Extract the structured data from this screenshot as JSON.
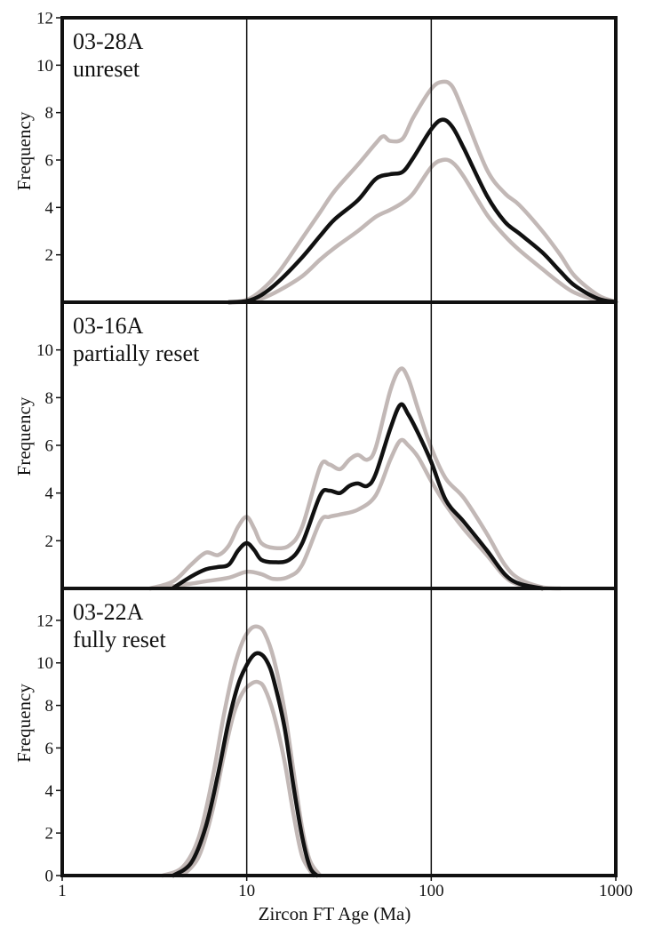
{
  "colors": {
    "best_fit": "#111111",
    "envelope": "#c2b8b6",
    "frame": "#111111",
    "refline": "#111111"
  },
  "chart_data": [
    {
      "type": "line",
      "panel_label": [
        "03-28A",
        "unreset"
      ],
      "xlabel": "",
      "ylabel": "Frequency",
      "xscale": "log",
      "xlim": [
        1,
        1000
      ],
      "ylim": [
        0,
        12
      ],
      "yticks": [
        2,
        4,
        6,
        8,
        10,
        12
      ],
      "reference_lines_x": [
        10,
        100
      ],
      "series": [
        {
          "role": "upper",
          "x": [
            8,
            10,
            12,
            15,
            20,
            25,
            30,
            40,
            50,
            55,
            60,
            70,
            80,
            100,
            115,
            130,
            150,
            200,
            250,
            300,
            400,
            500,
            600,
            800,
            1000
          ],
          "y": [
            0,
            0.1,
            0.5,
            1.3,
            2.7,
            3.8,
            4.7,
            5.8,
            6.7,
            7.0,
            6.8,
            6.9,
            7.8,
            9.0,
            9.3,
            9.1,
            8.0,
            5.6,
            4.6,
            4.1,
            3.0,
            2.0,
            1.1,
            0.3,
            0.02
          ]
        },
        {
          "role": "best",
          "x": [
            8,
            10,
            12,
            15,
            20,
            25,
            30,
            40,
            50,
            60,
            70,
            80,
            100,
            115,
            130,
            150,
            200,
            250,
            300,
            400,
            500,
            600,
            800,
            1000
          ],
          "y": [
            0,
            0.05,
            0.3,
            0.9,
            1.9,
            2.8,
            3.5,
            4.3,
            5.2,
            5.4,
            5.5,
            6.1,
            7.3,
            7.7,
            7.4,
            6.5,
            4.5,
            3.4,
            2.9,
            2.1,
            1.3,
            0.7,
            0.15,
            0.01
          ]
        },
        {
          "role": "lower",
          "x": [
            8,
            10,
            12,
            15,
            20,
            25,
            30,
            40,
            50,
            60,
            70,
            80,
            100,
            115,
            130,
            150,
            200,
            250,
            300,
            400,
            500,
            600,
            800,
            1000
          ],
          "y": [
            0,
            0.02,
            0.15,
            0.5,
            1.1,
            1.8,
            2.3,
            3.0,
            3.6,
            3.9,
            4.2,
            4.6,
            5.7,
            6.0,
            5.9,
            5.3,
            3.7,
            2.8,
            2.2,
            1.4,
            0.8,
            0.4,
            0.08,
            0.0
          ]
        }
      ]
    },
    {
      "type": "line",
      "panel_label": [
        "03-16A",
        "partially reset"
      ],
      "xlabel": "",
      "ylabel": "Frequency",
      "xscale": "log",
      "xlim": [
        1,
        1000
      ],
      "ylim": [
        0,
        12
      ],
      "yticks": [
        2,
        4,
        6,
        8,
        10
      ],
      "reference_lines_x": [
        10,
        100
      ],
      "series": [
        {
          "role": "upper",
          "x": [
            3,
            4,
            5,
            6,
            7,
            8,
            9,
            10,
            11,
            12,
            14,
            17,
            20,
            25,
            28,
            32,
            36,
            40,
            45,
            50,
            60,
            68,
            75,
            85,
            100,
            120,
            150,
            200,
            250,
            300,
            400,
            500
          ],
          "y": [
            0,
            0.3,
            1.0,
            1.5,
            1.4,
            1.8,
            2.6,
            3.0,
            2.5,
            1.9,
            1.7,
            1.8,
            2.6,
            5.1,
            5.2,
            5.0,
            5.4,
            5.6,
            5.4,
            5.9,
            8.3,
            9.2,
            8.8,
            7.5,
            5.9,
            4.6,
            3.8,
            2.3,
            1.0,
            0.4,
            0.05,
            0
          ]
        },
        {
          "role": "best",
          "x": [
            4,
            5,
            6,
            7,
            8,
            9,
            10,
            11,
            12,
            14,
            17,
            20,
            25,
            28,
            32,
            36,
            40,
            45,
            50,
            60,
            68,
            75,
            85,
            100,
            120,
            150,
            200,
            250,
            300,
            400
          ],
          "y": [
            0.02,
            0.5,
            0.8,
            0.9,
            1.0,
            1.6,
            1.9,
            1.6,
            1.2,
            1.1,
            1.2,
            1.9,
            3.9,
            4.1,
            4.0,
            4.3,
            4.4,
            4.3,
            4.8,
            6.7,
            7.7,
            7.3,
            6.5,
            5.3,
            3.7,
            2.8,
            1.6,
            0.6,
            0.2,
            0
          ]
        },
        {
          "role": "lower",
          "x": [
            3,
            4,
            5,
            6,
            8,
            10,
            12,
            14,
            17,
            20,
            25,
            28,
            32,
            40,
            50,
            60,
            68,
            75,
            85,
            100,
            120,
            150,
            200,
            250,
            300,
            400
          ],
          "y": [
            0,
            0.1,
            0.2,
            0.3,
            0.45,
            0.7,
            0.6,
            0.4,
            0.5,
            1.0,
            2.8,
            3.0,
            3.1,
            3.3,
            3.9,
            5.4,
            6.2,
            6.0,
            5.5,
            4.5,
            3.5,
            2.5,
            1.4,
            0.5,
            0.15,
            0
          ]
        }
      ]
    },
    {
      "type": "line",
      "panel_label": [
        "03-22A",
        "fully reset"
      ],
      "xlabel": "Zircon FT Age (Ma)",
      "ylabel": "Frequency",
      "xscale": "log",
      "xlim": [
        1,
        1000
      ],
      "ylim": [
        0,
        13.5
      ],
      "yticks": [
        0,
        2,
        4,
        6,
        8,
        10,
        12
      ],
      "xtick_labels": [
        "1",
        "10",
        "100",
        "1000"
      ],
      "reference_lines_x": [
        10,
        100
      ],
      "series": [
        {
          "role": "upper",
          "x": [
            3.5,
            4.5,
            5.5,
            6.5,
            7.5,
            8.5,
            9.5,
            10.5,
            11.5,
            12.5,
            14,
            16,
            18,
            20,
            22,
            25
          ],
          "y": [
            0,
            0.4,
            1.8,
            4.5,
            7.5,
            9.7,
            11.0,
            11.6,
            11.7,
            11.4,
            10.2,
            7.8,
            4.8,
            2.2,
            0.7,
            0
          ]
        },
        {
          "role": "best",
          "x": [
            4,
            5,
            6,
            7,
            8,
            9,
            10,
            11,
            12,
            13,
            14,
            16,
            18,
            20,
            22,
            24
          ],
          "y": [
            0,
            0.6,
            2.3,
            4.8,
            7.3,
            9.0,
            9.9,
            10.4,
            10.4,
            10.0,
            9.2,
            7.0,
            4.1,
            1.8,
            0.4,
            0
          ]
        },
        {
          "role": "lower",
          "x": [
            4.5,
            5.5,
            6.5,
            7.5,
            8.5,
            9.5,
            10.5,
            11.5,
            12.5,
            14,
            16,
            18,
            20,
            23
          ],
          "y": [
            0,
            0.9,
            3.0,
            5.6,
            7.6,
            8.6,
            9.0,
            9.1,
            8.8,
            7.6,
            5.4,
            2.8,
            0.9,
            0
          ]
        }
      ]
    }
  ]
}
